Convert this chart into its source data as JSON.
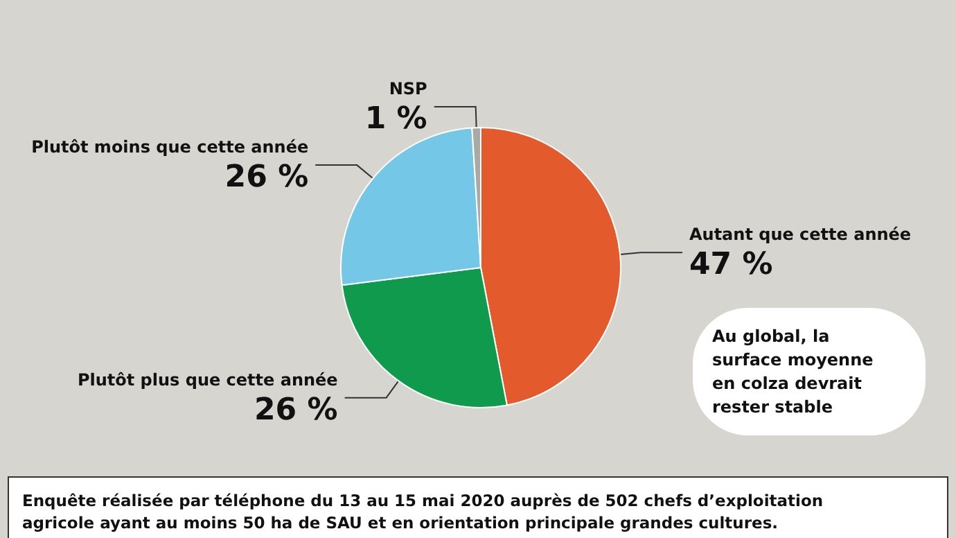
{
  "chart_data": {
    "type": "pie",
    "categories": [
      "Autant que cette année",
      "Plutôt plus que cette année",
      "Plutôt moins que cette année",
      "NSP"
    ],
    "values": [
      47,
      26,
      26,
      1
    ],
    "colors": [
      "#e35a2c",
      "#0f9a4d",
      "#74c7e6",
      "#a9aaa5"
    ],
    "value_labels": [
      "47 %",
      "26 %",
      "26 %",
      "1 %"
    ],
    "legend": false,
    "annotations": [
      "Au global, la surface moyenne en colza devrait rester stable",
      "Enquête réalisée par téléphone du 13 au 15 mai 2020 auprès de 502 chefs d’exploitation agricole ayant au moins 50 ha de SAU et en orientation principale grandes cultures."
    ]
  }
}
